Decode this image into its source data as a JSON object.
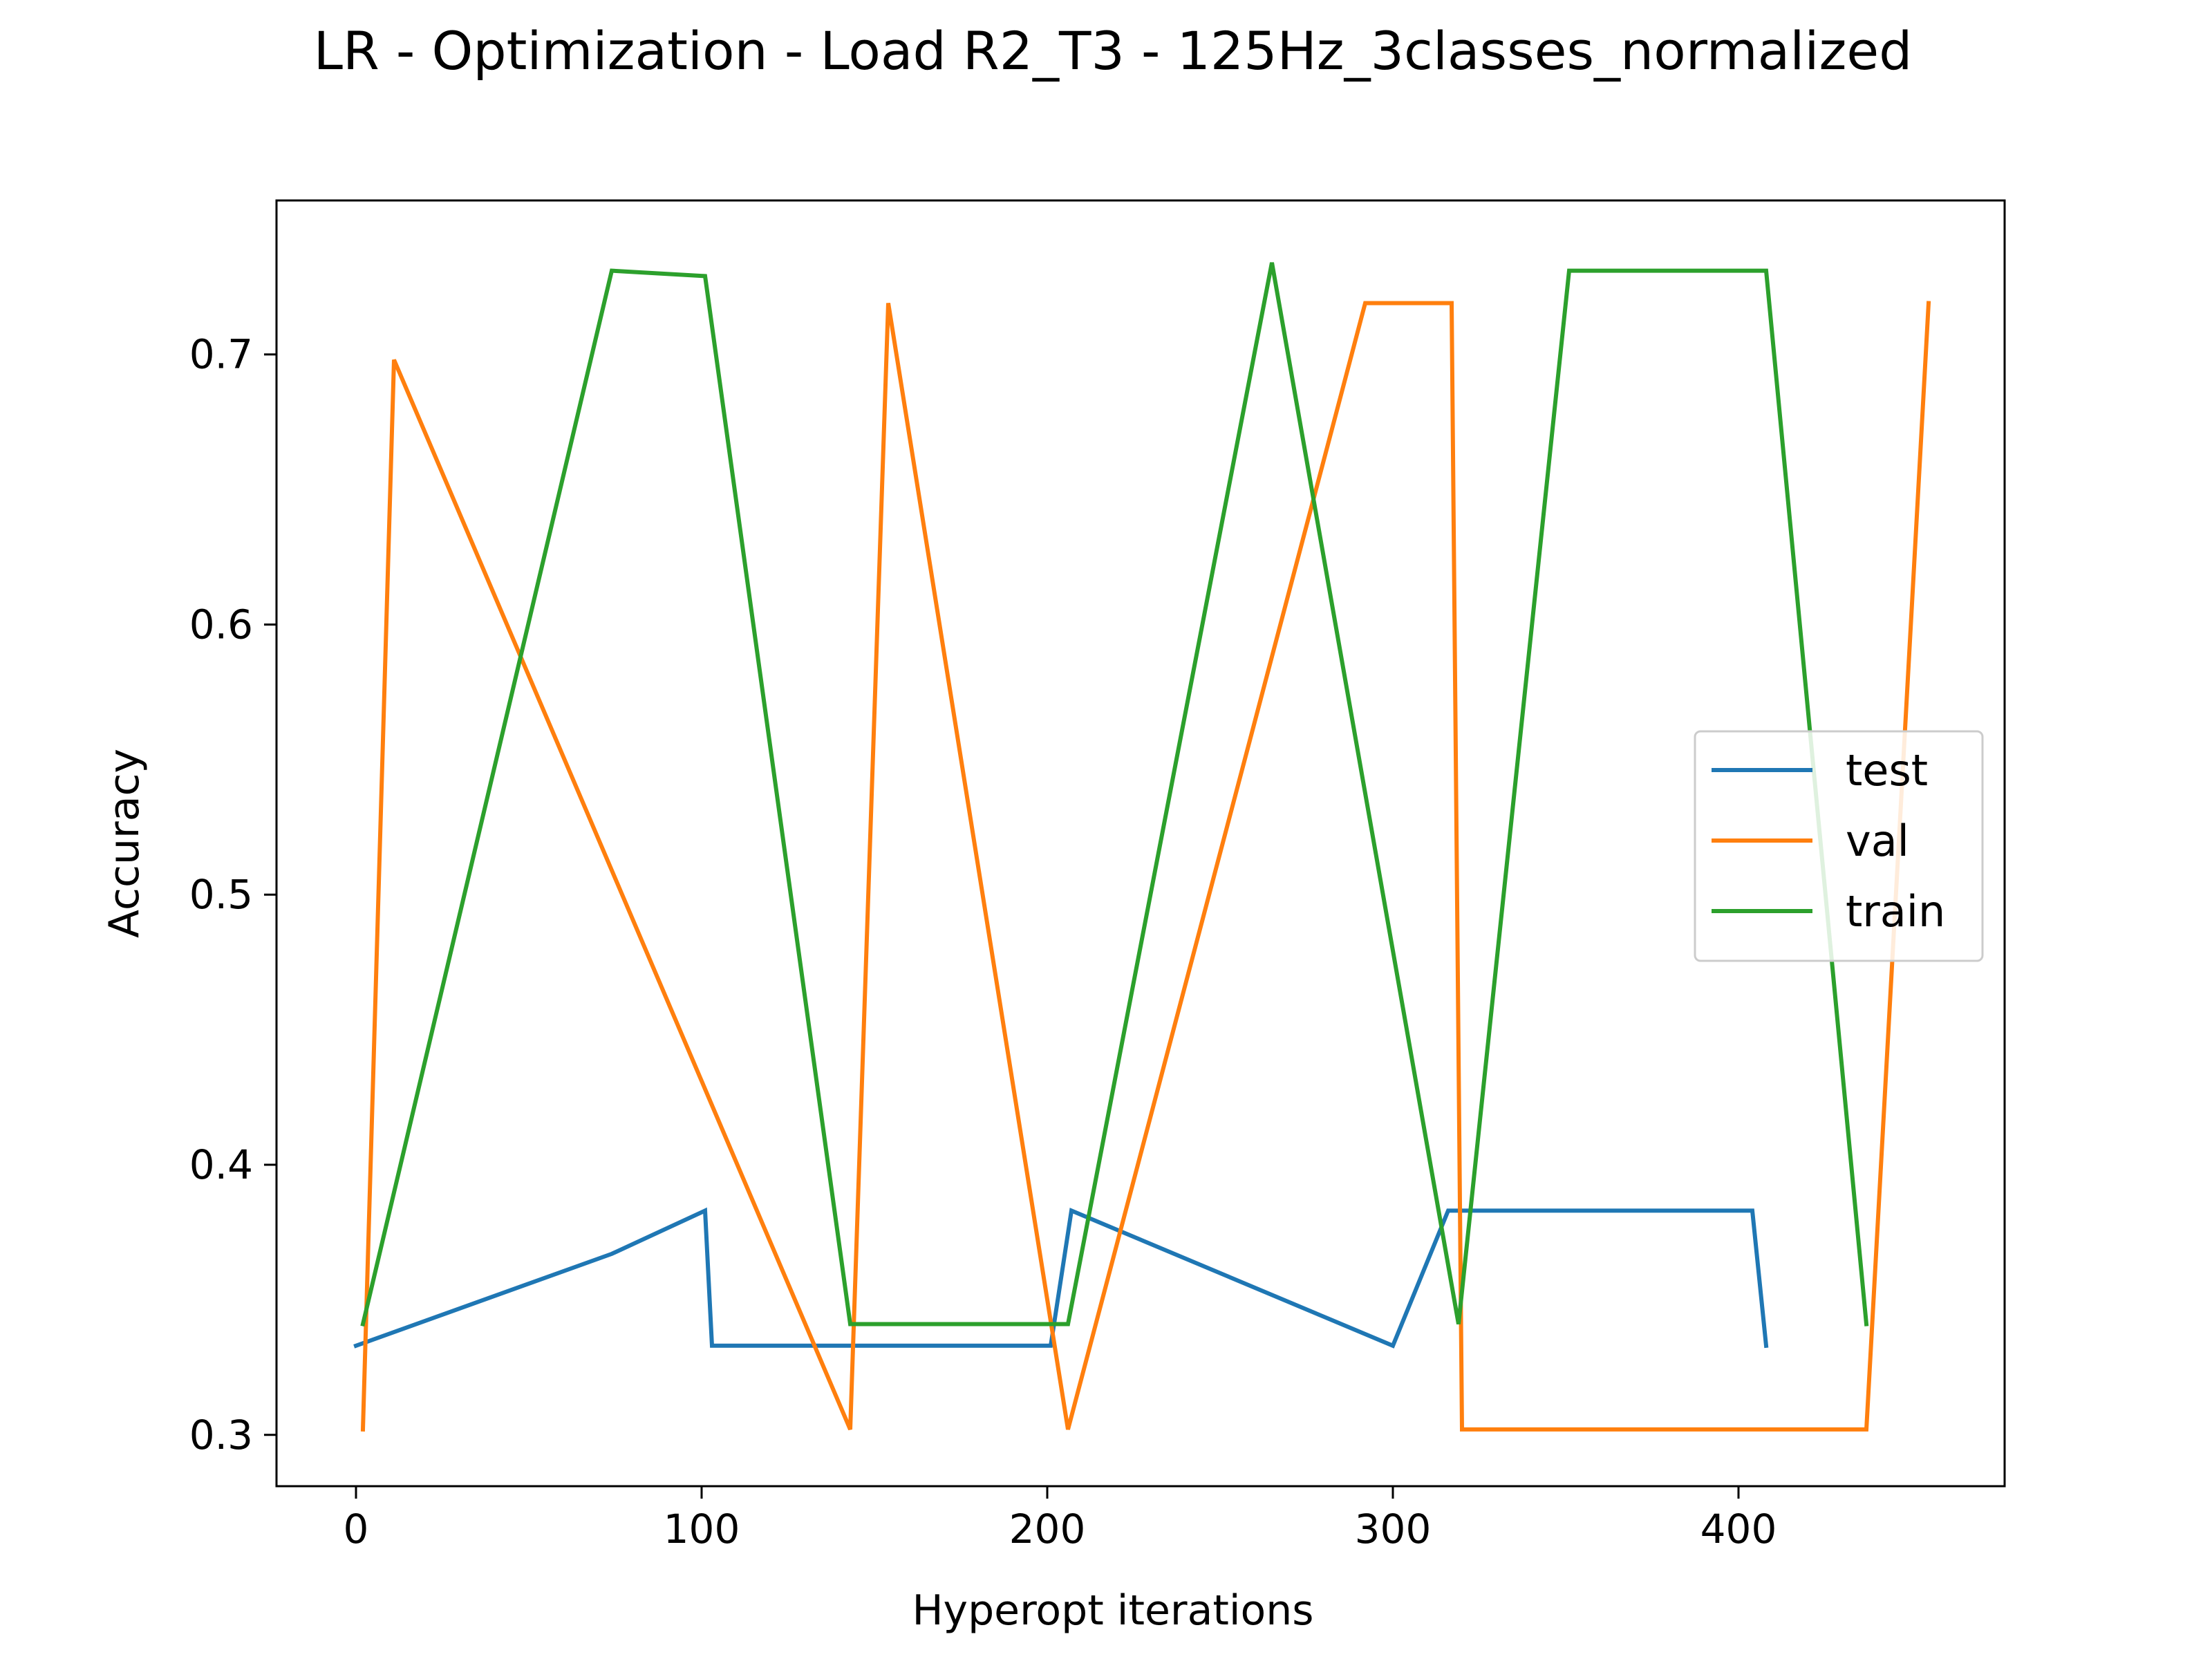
{
  "chart_data": {
    "type": "line",
    "title": "LR - Optimization - Load R2_T3 - 125Hz_3classes_normalized",
    "xlabel": "Hyperopt iterations",
    "ylabel": "Accuracy",
    "xlim": [
      -23,
      477
    ],
    "ylim": [
      0.281,
      0.757
    ],
    "xticks": [
      0,
      100,
      200,
      300,
      400
    ],
    "xtick_labels": [
      "0",
      "100",
      "200",
      "300",
      "400"
    ],
    "yticks": [
      0.3,
      0.4,
      0.5,
      0.6,
      0.7
    ],
    "ytick_labels": [
      "0.3",
      "0.4",
      "0.5",
      "0.6",
      "0.7"
    ],
    "grid": false,
    "legend_position": "center-right",
    "series": [
      {
        "name": "test",
        "color": "#1f77b4",
        "points": [
          [
            0,
            0.333
          ],
          [
            74,
            0.367
          ],
          [
            101,
            0.383
          ],
          [
            103,
            0.333
          ],
          [
            201,
            0.333
          ],
          [
            207,
            0.383
          ],
          [
            300,
            0.333
          ],
          [
            316,
            0.383
          ],
          [
            404,
            0.383
          ],
          [
            408,
            0.333
          ]
        ]
      },
      {
        "name": "val",
        "color": "#ff7f0e",
        "points": [
          [
            2,
            0.302
          ],
          [
            11,
            0.698
          ],
          [
            143,
            0.302
          ],
          [
            154,
            0.719
          ],
          [
            206,
            0.302
          ],
          [
            292,
            0.719
          ],
          [
            317,
            0.719
          ],
          [
            320,
            0.302
          ],
          [
            437,
            0.302
          ],
          [
            455,
            0.719
          ]
        ]
      },
      {
        "name": "train",
        "color": "#2ca02c",
        "points": [
          [
            2,
            0.341
          ],
          [
            74,
            0.731
          ],
          [
            101,
            0.729
          ],
          [
            143,
            0.341
          ],
          [
            206,
            0.341
          ],
          [
            265,
            0.734
          ],
          [
            319,
            0.341
          ],
          [
            351,
            0.731
          ],
          [
            408,
            0.731
          ],
          [
            437,
            0.341
          ]
        ]
      }
    ]
  }
}
